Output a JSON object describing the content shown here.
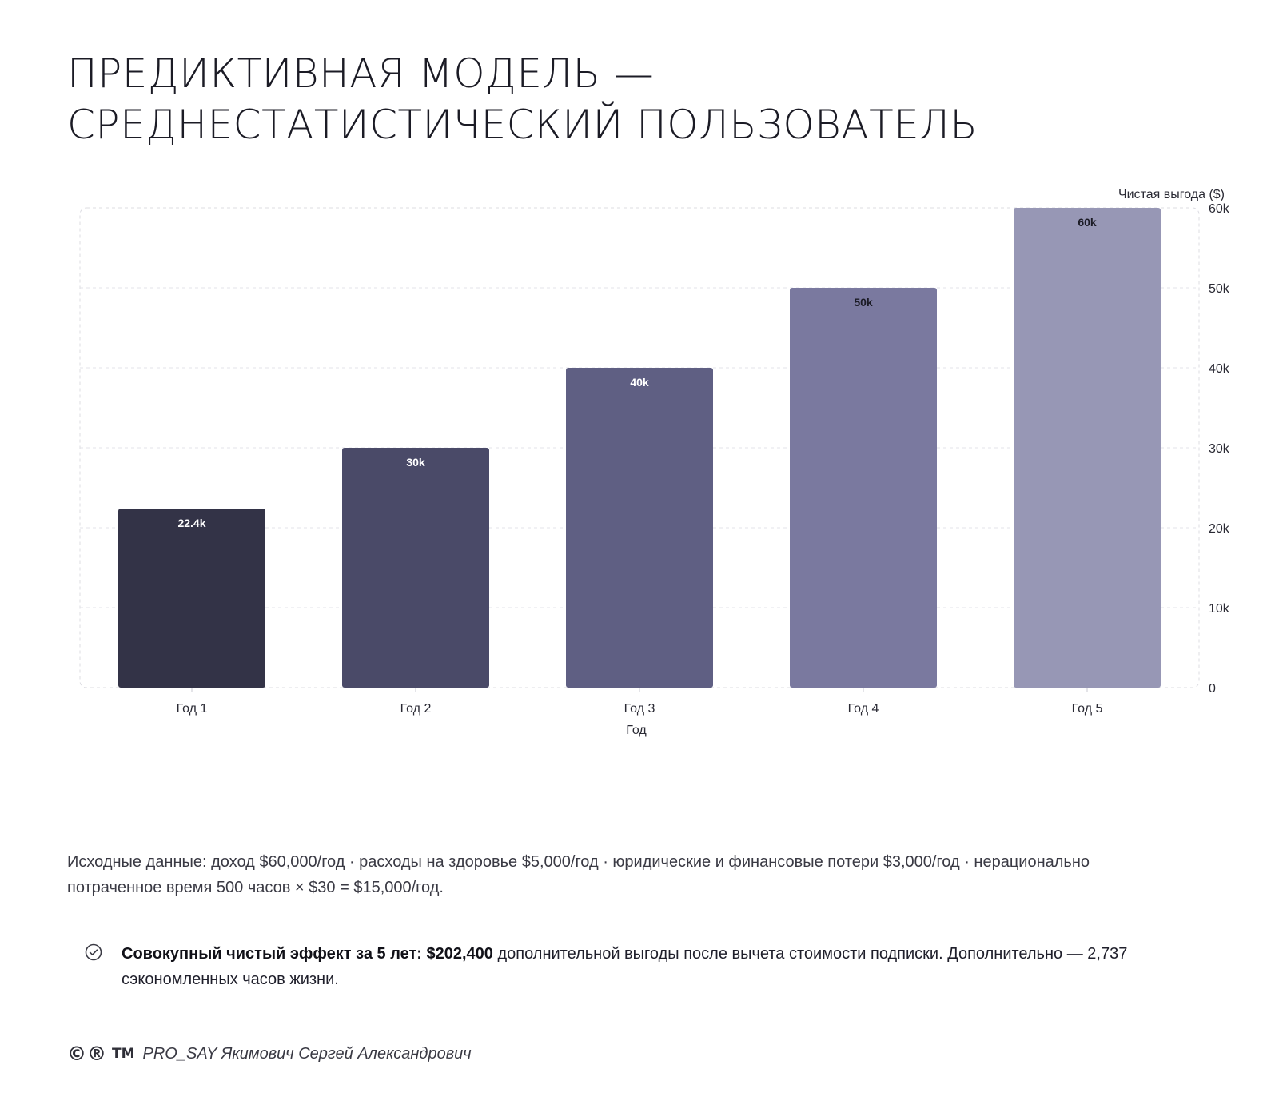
{
  "page": {
    "title_line1": "ПРЕДИКТИВНАЯ МОДЕЛЬ —",
    "title_line2": "СРЕДНЕСТАТИСТИЧЕСКИЙ ПОЛЬЗОВАТЕЛЬ"
  },
  "chart_data": {
    "type": "bar",
    "title": "",
    "categories": [
      "Год 1",
      "Год 2",
      "Год 3",
      "Год 4",
      "Год 5"
    ],
    "values": [
      22400,
      30000,
      40000,
      50000,
      60000
    ],
    "value_labels": [
      "22.4k",
      "30k",
      "40k",
      "50k",
      "60k"
    ],
    "xlabel": "Год",
    "ylabel": "Чистая выгода ($)",
    "ylim": [
      0,
      60000
    ],
    "yticks": [
      0,
      10000,
      20000,
      30000,
      40000,
      50000,
      60000
    ],
    "ytick_labels": [
      "0",
      "10k",
      "20k",
      "30k",
      "40k",
      "50k",
      "60k"
    ],
    "y_axis_side": "right",
    "grid": true,
    "legend": "none",
    "bar_colors": [
      "#333347",
      "#4a4a68",
      "#5f5f83",
      "#7a799f",
      "#9797b5"
    ],
    "label_colors": [
      "#ffffff",
      "#ffffff",
      "#ffffff",
      "#1b1b25",
      "#1b1b25"
    ]
  },
  "notes": {
    "text": "Исходные данные: доход $60,000/год · расходы на здоровье $5,000/год · юридические и финансовые потери $3,000/год · нерационально потраченное время 500 часов × $30 = $15,000/год."
  },
  "summary": {
    "icon": "check-circle-icon",
    "bold": "Совокупный чистый эффект за 5 лет: $202,400",
    "rest": " дополнительной выгоды после вычета стоимости подписки. Дополнительно — 2,737 сэкономленных часов жизни."
  },
  "footer": {
    "marks": "©®",
    "tm": "TM",
    "author": "PRO_SAY Якимович Сергей Александрович"
  }
}
